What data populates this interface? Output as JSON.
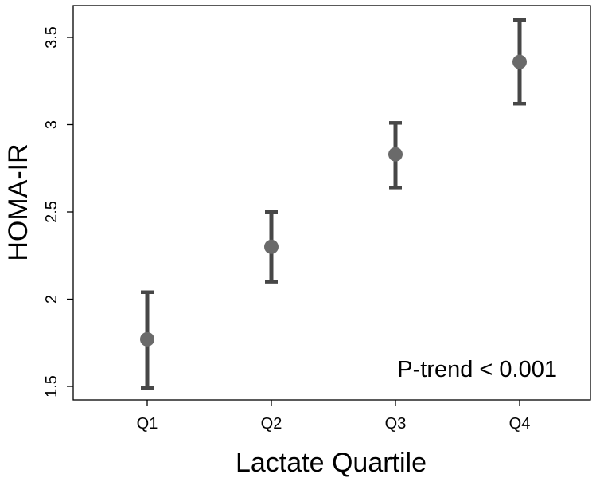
{
  "chart_data": {
    "type": "scatter",
    "categories": [
      "Q1",
      "Q2",
      "Q3",
      "Q4"
    ],
    "series": [
      {
        "values": [
          1.77,
          2.3,
          2.83,
          3.36
        ],
        "lower": [
          1.49,
          2.1,
          2.64,
          3.12
        ],
        "upper": [
          2.04,
          2.5,
          3.01,
          3.6
        ]
      }
    ],
    "xlabel": "Lactate Quartile",
    "ylabel": "HOMA-IR",
    "ylim": [
      1.5,
      3.5
    ],
    "yticks": [
      "1.5",
      "2",
      "2.5",
      "3",
      "3.5"
    ],
    "annotation": "P-trend < 0.001",
    "grid": false,
    "colors": {
      "errorbar": "#474747",
      "point": "#6a6a6a"
    }
  }
}
